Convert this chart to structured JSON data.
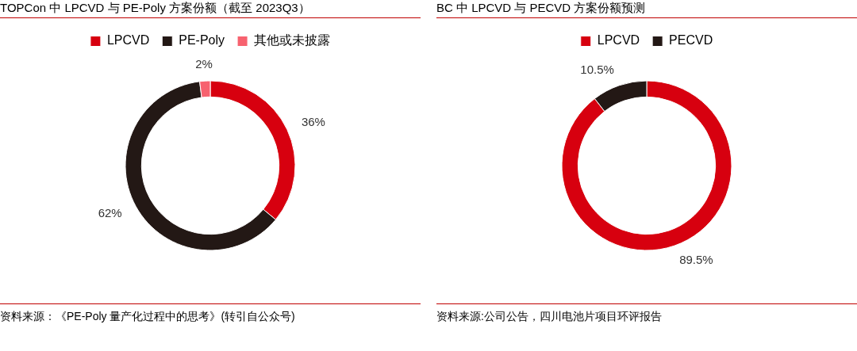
{
  "chart_data": [
    {
      "type": "donut",
      "title": "TOPCon 中 LPCVD 与 PE-Poly 方案份额（截至 2023Q3）",
      "categories": [
        "LPCVD",
        "PE-Poly",
        "其他或未披露"
      ],
      "values": [
        36,
        62,
        2
      ],
      "colors": [
        "#d7000f",
        "#231815",
        "#f7626f"
      ],
      "value_labels": [
        "36%",
        "62%",
        "2%"
      ],
      "legend": "top",
      "annotations": [
        "资料来源：《PE-Poly 量产化过程中的思考》(转引自公众号)"
      ]
    },
    {
      "type": "donut",
      "title": "BC 中 LPCVD 与 PECVD 方案份额预测",
      "categories": [
        "LPCVD",
        "PECVD"
      ],
      "values": [
        89.5,
        10.5
      ],
      "colors": [
        "#d7000f",
        "#231815"
      ],
      "value_labels": [
        "89.5%",
        "10.5%"
      ],
      "legend": "top",
      "annotations": [
        "资料来源:公司公告，四川电池片项目环评报告"
      ]
    }
  ]
}
